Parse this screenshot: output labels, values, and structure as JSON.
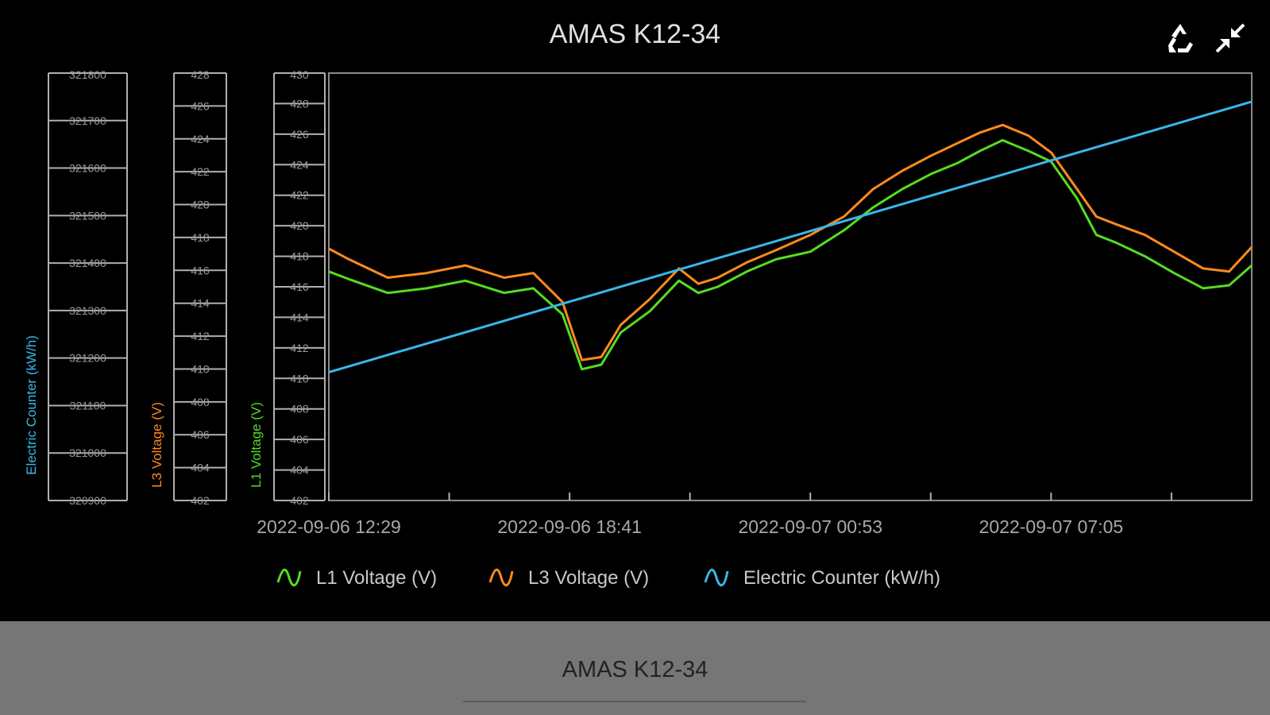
{
  "window": {
    "title": "AMAS K12-34",
    "footer_title": "AMAS K12-34",
    "icons": [
      "recycle-icon",
      "collapse-icon"
    ]
  },
  "colors": {
    "l1": "#55dd22",
    "l3": "#ff8a1e",
    "counter": "#38b8e8",
    "axis": "#b0b0b0"
  },
  "chart_data": {
    "type": "line",
    "title": "AMAS K12-34",
    "x_ticks": [
      "2022-09-06 12:29",
      "2022-09-06 18:41",
      "2022-09-07 00:53",
      "2022-09-07 07:05"
    ],
    "x_range": [
      "2022-09-06 12:29",
      "2022-09-07 12:15"
    ],
    "axes": [
      {
        "name": "voltage_main",
        "label": "",
        "range": [
          402,
          430
        ],
        "ticks": [
          402,
          404,
          406,
          408,
          410,
          412,
          414,
          416,
          418,
          420,
          422,
          424,
          426,
          428,
          430
        ]
      },
      {
        "name": "l1",
        "label": "L1 Voltage (V)",
        "range": [
          402,
          430
        ]
      },
      {
        "name": "l3",
        "label": "L3 Voltage (V)",
        "range": [
          402,
          428
        ],
        "ticks": [
          402,
          404,
          406,
          408,
          410,
          412,
          414,
          416,
          418,
          420,
          422,
          424,
          426,
          428
        ]
      },
      {
        "name": "counter",
        "label": "Electric Counter (kW/h)",
        "range": [
          320900,
          321800
        ],
        "ticks": [
          320900,
          321000,
          321100,
          321200,
          321300,
          321400,
          321500,
          321600,
          321700,
          321800
        ]
      }
    ],
    "series": [
      {
        "name": "L1 Voltage (V)",
        "axis": "voltage_main",
        "x": [
          "2022-09-06 12:29",
          "2022-09-06 13:00",
          "2022-09-06 14:00",
          "2022-09-06 15:00",
          "2022-09-06 16:00",
          "2022-09-06 17:00",
          "2022-09-06 17:45",
          "2022-09-06 18:30",
          "2022-09-06 19:00",
          "2022-09-06 19:30",
          "2022-09-06 20:00",
          "2022-09-06 20:45",
          "2022-09-06 21:30",
          "2022-09-06 22:00",
          "2022-09-06 22:30",
          "2022-09-06 23:15",
          "2022-09-07 00:00",
          "2022-09-07 00:53",
          "2022-09-07 01:45",
          "2022-09-07 02:30",
          "2022-09-07 03:15",
          "2022-09-07 04:00",
          "2022-09-07 04:40",
          "2022-09-07 05:15",
          "2022-09-07 05:50",
          "2022-09-07 06:30",
          "2022-09-07 07:05",
          "2022-09-07 07:45",
          "2022-09-07 08:15",
          "2022-09-07 08:45",
          "2022-09-07 09:30",
          "2022-09-07 10:15",
          "2022-09-07 11:00",
          "2022-09-07 11:40",
          "2022-09-07 12:15"
        ],
        "values": [
          417.0,
          416.5,
          415.6,
          415.9,
          416.4,
          415.6,
          415.9,
          414.2,
          410.6,
          410.9,
          413.0,
          414.4,
          416.4,
          415.6,
          416.0,
          417.0,
          417.8,
          418.3,
          419.7,
          421.2,
          422.4,
          423.4,
          424.1,
          424.9,
          425.6,
          424.9,
          424.2,
          421.8,
          419.4,
          418.9,
          418.0,
          416.9,
          415.9,
          416.1,
          417.4
        ]
      },
      {
        "name": "L3 Voltage (V)",
        "axis": "voltage_main",
        "x": [
          "2022-09-06 12:29",
          "2022-09-06 13:00",
          "2022-09-06 14:00",
          "2022-09-06 15:00",
          "2022-09-06 16:00",
          "2022-09-06 17:00",
          "2022-09-06 17:45",
          "2022-09-06 18:30",
          "2022-09-06 19:00",
          "2022-09-06 19:30",
          "2022-09-06 20:00",
          "2022-09-06 20:45",
          "2022-09-06 21:30",
          "2022-09-06 22:00",
          "2022-09-06 22:30",
          "2022-09-06 23:15",
          "2022-09-07 00:00",
          "2022-09-07 00:53",
          "2022-09-07 01:45",
          "2022-09-07 02:30",
          "2022-09-07 03:15",
          "2022-09-07 04:00",
          "2022-09-07 04:40",
          "2022-09-07 05:15",
          "2022-09-07 05:50",
          "2022-09-07 06:30",
          "2022-09-07 07:05",
          "2022-09-07 07:45",
          "2022-09-07 08:15",
          "2022-09-07 08:45",
          "2022-09-07 09:30",
          "2022-09-07 10:15",
          "2022-09-07 11:00",
          "2022-09-07 11:40",
          "2022-09-07 12:15"
        ],
        "values": [
          418.5,
          417.8,
          416.6,
          416.9,
          417.4,
          416.6,
          416.9,
          415.0,
          411.2,
          411.4,
          413.5,
          415.2,
          417.2,
          416.2,
          416.6,
          417.6,
          418.4,
          419.4,
          420.6,
          422.4,
          423.6,
          424.6,
          425.4,
          426.1,
          426.6,
          425.9,
          424.8,
          422.4,
          420.6,
          420.1,
          419.4,
          418.3,
          417.2,
          417.0,
          418.6
        ]
      },
      {
        "name": "Electric Counter (kW/h)",
        "axis": "counter",
        "x": [
          "2022-09-06 12:29",
          "2022-09-07 12:15"
        ],
        "values": [
          321170,
          321740
        ]
      }
    ],
    "legend": [
      "L1 Voltage (V)",
      "L3 Voltage (V)",
      "Electric Counter (kW/h)"
    ],
    "legend_position": "bottom",
    "grid": true
  }
}
